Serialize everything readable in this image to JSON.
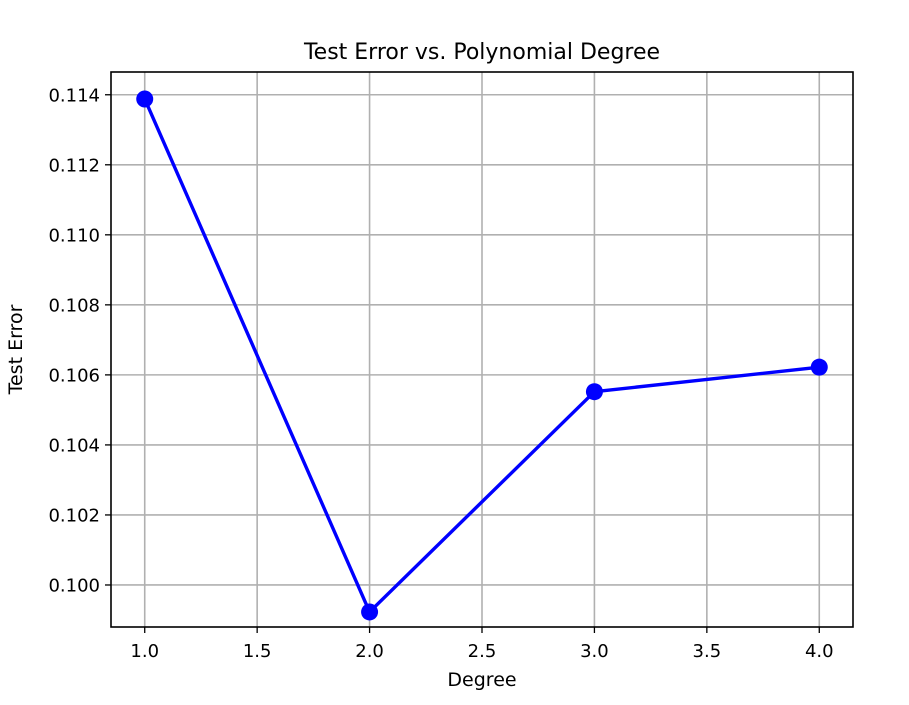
{
  "chart_data": {
    "type": "line",
    "title": "Test Error vs. Polynomial Degree",
    "xlabel": "Degree",
    "ylabel": "Test Error",
    "x": [
      1,
      2,
      3,
      4
    ],
    "series": [
      {
        "values": [
          0.11388,
          0.09923,
          0.10552,
          0.10622
        ],
        "color": "#0000ff",
        "marker": "circle"
      }
    ],
    "xlim": [
      0.85,
      4.15
    ],
    "ylim": [
      0.0988,
      0.11465
    ],
    "xticks": [
      1.0,
      1.5,
      2.0,
      2.5,
      3.0,
      3.5,
      4.0
    ],
    "xtick_labels": [
      "1.0",
      "1.5",
      "2.0",
      "2.5",
      "3.0",
      "3.5",
      "4.0"
    ],
    "yticks": [
      0.1,
      0.102,
      0.104,
      0.106,
      0.108,
      0.11,
      0.112,
      0.114
    ],
    "ytick_labels": [
      "0.100",
      "0.102",
      "0.104",
      "0.106",
      "0.108",
      "0.110",
      "0.112",
      "0.114"
    ],
    "grid": true,
    "legend": false
  }
}
